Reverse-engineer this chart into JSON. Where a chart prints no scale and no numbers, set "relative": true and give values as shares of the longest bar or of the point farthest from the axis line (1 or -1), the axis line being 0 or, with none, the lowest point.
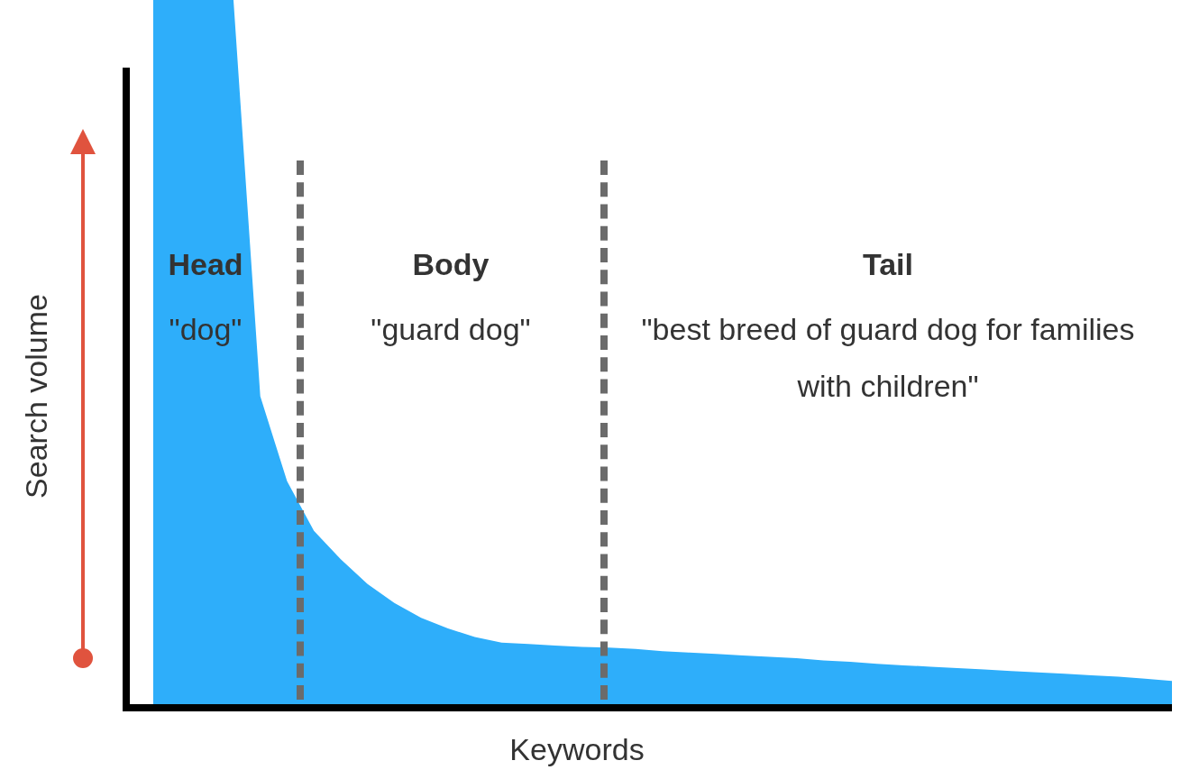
{
  "chart_data": {
    "type": "area",
    "relative": true,
    "xlabel": "Keywords",
    "ylabel": "Search volume",
    "legend": false,
    "categories": [
      null,
      null,
      null,
      null,
      null,
      null,
      null,
      null,
      null,
      null,
      null,
      null,
      null,
      null,
      null,
      null,
      null,
      null,
      null,
      null,
      null,
      null,
      null,
      null,
      null,
      null,
      null,
      null,
      null,
      null,
      null,
      null,
      null,
      null,
      null,
      null,
      null,
      null,
      null,
      null
    ],
    "series": [
      {
        "color": "#2eaefa",
        "values": [
          null,
          1,
          1,
          1,
          1,
          0.44,
          0.32,
          0.25,
          0.21,
          0.175,
          0.148,
          0.127,
          0.112,
          0.1,
          0.092,
          0.09,
          0.088,
          0.086,
          0.085,
          0.083,
          0.08,
          0.078,
          0.076,
          0.074,
          0.072,
          0.07,
          0.067,
          0.065,
          0.062,
          0.06,
          0.058,
          0.056,
          0.054,
          0.052,
          0.05,
          0.048,
          0.046,
          0.044,
          0.041,
          0.038
        ]
      }
    ],
    "annotations": [
      "Head",
      "\"dog\"",
      "Body",
      "\"guard dog\"",
      "Tail",
      "\"best breed of guard dog for families with children\""
    ]
  }
}
